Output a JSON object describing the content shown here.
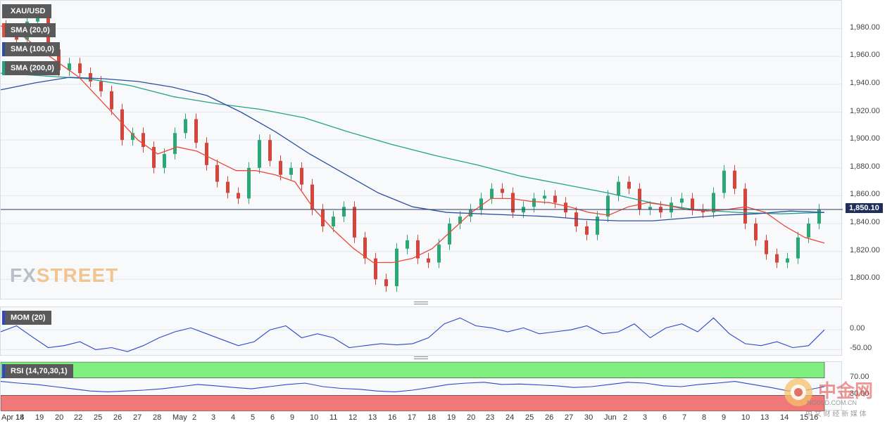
{
  "symbol": "XAU/USD",
  "indicators": {
    "sma20": {
      "label": "SMA (20,0)",
      "color": "#e84a3c"
    },
    "sma100": {
      "label": "SMA (100,0)",
      "color": "#2f4ea3"
    },
    "sma200": {
      "label": "SMA (200,0)",
      "color": "#22a388"
    },
    "mom": {
      "label": "MOM (20)",
      "color": "#2f47c9"
    },
    "rsi": {
      "label": "RSI (14,70,30,1)",
      "color": "#2f47c9"
    }
  },
  "logo": {
    "text_a": "FX",
    "text_b": "STREET"
  },
  "watermark": {
    "cn": "中金网",
    "sub": "中 文 财 经 新 媒 体",
    "domain": "NGOLD.COM.CN"
  },
  "chart_data": {
    "type": "line",
    "price_axis": {
      "ylim": [
        1786,
        1998
      ],
      "ticks": [
        "1,980.00",
        "1,960.00",
        "1,940.00",
        "1,920.00",
        "1,900.00",
        "1,880.00",
        "1,860.00",
        "1,840.00",
        "1,820.00",
        "1,800.00"
      ]
    },
    "last_price": {
      "label": "1,850.10",
      "value": 1850.1
    },
    "x_labels": [
      "Apr 14",
      "18",
      "19",
      "20",
      "22",
      "25",
      "26",
      "27",
      "28",
      "May",
      "2",
      "3",
      "4",
      "5",
      "6",
      "9",
      "10",
      "11",
      "12",
      "13",
      "16",
      "17",
      "18",
      "19",
      "20",
      "23",
      "24",
      "25",
      "26",
      "27",
      "30",
      "Jun",
      "2",
      "3",
      "6",
      "7",
      "8",
      "9",
      "10",
      "13",
      "14",
      "15",
      "16"
    ],
    "close_series": [
      1978,
      1972,
      1985,
      1990,
      1965,
      1950,
      1955,
      1948,
      1942,
      1935,
      1922,
      1900,
      1905,
      1895,
      1880,
      1890,
      1905,
      1915,
      1898,
      1882,
      1870,
      1862,
      1858,
      1880,
      1900,
      1885,
      1875,
      1880,
      1868,
      1850,
      1838,
      1845,
      1852,
      1830,
      1815,
      1800,
      1795,
      1822,
      1828,
      1815,
      1812,
      1825,
      1840,
      1845,
      1850,
      1858,
      1865,
      1862,
      1848,
      1852,
      1858,
      1860,
      1855,
      1848,
      1838,
      1832,
      1845,
      1860,
      1870,
      1865,
      1850,
      1852,
      1848,
      1855,
      1858,
      1850,
      1848,
      1862,
      1878,
      1865,
      1840,
      1828,
      1818,
      1812,
      1815,
      1830,
      1840,
      1850
    ],
    "sma20": [
      1982,
      1976,
      1965,
      1955,
      1945,
      1930,
      1915,
      1900,
      1890,
      1895,
      1892,
      1885,
      1878,
      1878,
      1875,
      1870,
      1850,
      1835,
      1822,
      1812,
      1812,
      1815,
      1822,
      1835,
      1848,
      1858,
      1858,
      1856,
      1855,
      1852,
      1848,
      1846,
      1852,
      1855,
      1853,
      1850,
      1849,
      1850,
      1852,
      1848,
      1838,
      1830,
      1826
    ],
    "sma100": [
      1936,
      1941,
      1945,
      1944,
      1942,
      1938,
      1932,
      1920,
      1906,
      1890,
      1876,
      1862,
      1852,
      1848,
      1847,
      1846,
      1845,
      1843,
      1842,
      1842,
      1844,
      1846,
      1847,
      1849,
      1848
    ],
    "sma200": [
      1948,
      1946,
      1944,
      1939,
      1931,
      1926,
      1922,
      1916,
      1906,
      1897,
      1889,
      1882,
      1874,
      1868,
      1862,
      1855,
      1850,
      1848,
      1847,
      1848
    ],
    "mom_axis": {
      "ticks": [
        "0.00",
        "-50.00"
      ],
      "ylim": [
        -60,
        50
      ]
    },
    "mom_series": [
      -5,
      10,
      -18,
      -45,
      -40,
      -30,
      -50,
      -45,
      -55,
      -40,
      -20,
      -5,
      5,
      -10,
      -25,
      -40,
      -30,
      0,
      10,
      -20,
      -10,
      -20,
      -45,
      -40,
      -35,
      -38,
      -35,
      -20,
      15,
      30,
      10,
      5,
      -5,
      5,
      -10,
      -5,
      0,
      10,
      -10,
      -5,
      15,
      -20,
      5,
      15,
      -5,
      30,
      -10,
      -35,
      -40,
      -30,
      -45,
      -40,
      0
    ],
    "rsi_axis": {
      "ticks": [
        "70.00",
        "30.00"
      ],
      "overbought": 70,
      "oversold": 30
    },
    "rsi_series": [
      62,
      58,
      55,
      50,
      45,
      40,
      38,
      40,
      42,
      45,
      50,
      55,
      52,
      48,
      45,
      50,
      55,
      58,
      50,
      46,
      44,
      40,
      38,
      42,
      48,
      55,
      58,
      60,
      55,
      56,
      54,
      52,
      48,
      50,
      55,
      60,
      58,
      52,
      50,
      55,
      58,
      62,
      55,
      48,
      40,
      42,
      50
    ]
  }
}
